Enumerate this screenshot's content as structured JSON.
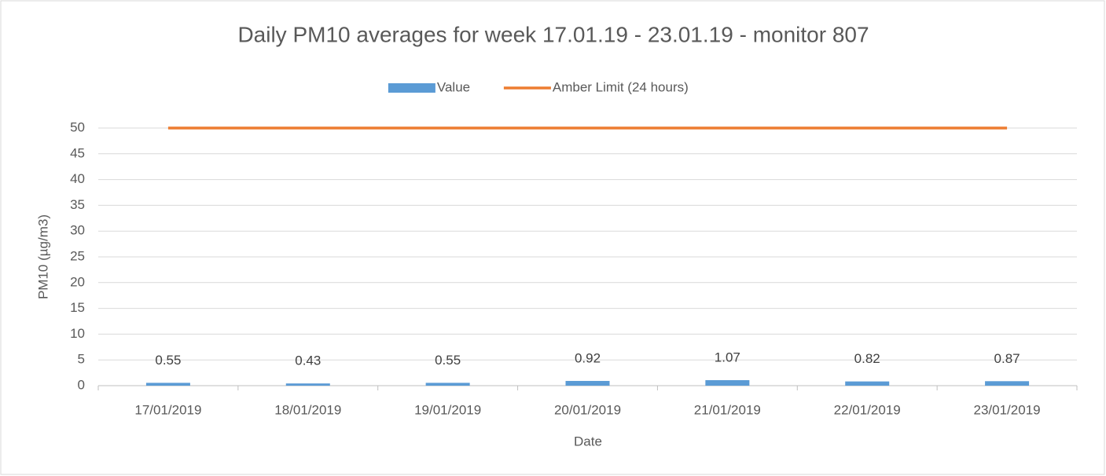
{
  "chart_data": {
    "type": "bar",
    "title": "Daily PM10 averages for week 17.01.19 - 23.01.19 - monitor 807",
    "x_label": "Date",
    "y_label": "PM10 (µg/m3)",
    "categories": [
      "17/01/2019",
      "18/01/2019",
      "19/01/2019",
      "20/01/2019",
      "21/01/2019",
      "22/01/2019",
      "23/01/2019"
    ],
    "series": [
      {
        "name": "Value",
        "type": "bar",
        "color": "#5b9bd5",
        "values": [
          0.55,
          0.43,
          0.55,
          0.92,
          1.07,
          0.82,
          0.87
        ]
      },
      {
        "name": "Amber Limit (24 hours)",
        "type": "line",
        "color": "#ed7d31",
        "values": [
          50,
          50,
          50,
          50,
          50,
          50,
          50
        ]
      }
    ],
    "ylim": [
      0,
      50
    ],
    "yticks": [
      0,
      5,
      10,
      15,
      20,
      25,
      30,
      35,
      40,
      45,
      50
    ],
    "grid": true,
    "legend": "top"
  }
}
